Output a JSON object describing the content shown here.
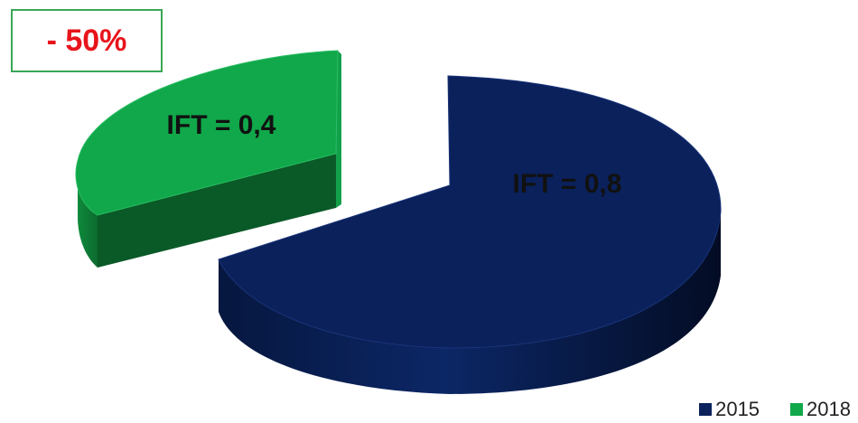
{
  "chart_data": {
    "type": "pie",
    "categories": [
      "2015",
      "2018"
    ],
    "values": [
      0.8,
      0.4
    ],
    "data_labels": [
      "IFT = 0,8",
      "IFT = 0,4"
    ],
    "colors": [
      "#0a215c",
      "#10a84a"
    ],
    "style": "3d-exploded",
    "legend_position": "bottom-right",
    "annotation": "- 50%"
  }
}
